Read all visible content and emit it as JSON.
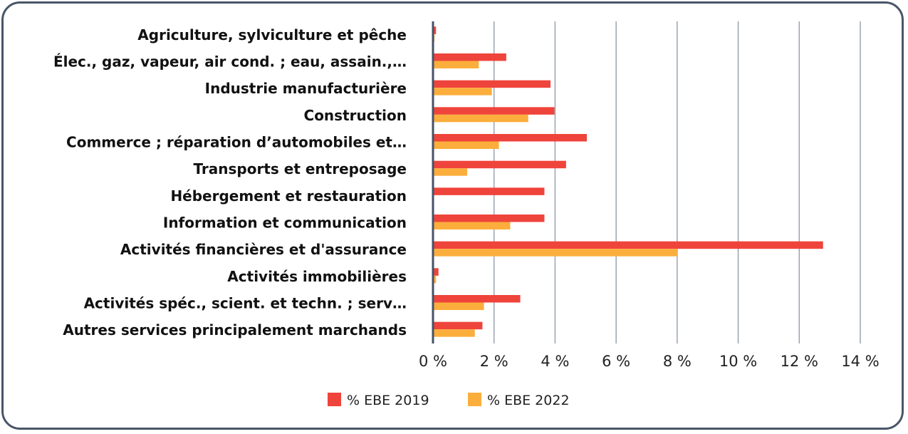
{
  "chart_data": {
    "type": "bar",
    "orientation": "horizontal",
    "title": "",
    "xlabel": "",
    "ylabel": "",
    "xlim": [
      0,
      14
    ],
    "xticks": [
      0,
      2,
      4,
      6,
      8,
      10,
      12,
      14
    ],
    "xtick_labels": [
      "0 %",
      "2 %",
      "4 %",
      "6 %",
      "8 %",
      "10 %",
      "12 %",
      "14 %"
    ],
    "grid": true,
    "legend_position": "bottom",
    "categories": [
      "Agriculture, sylviculture et pêche",
      "Élec., gaz, vapeur, air cond. ; eau, assain.,…",
      "Industrie manufacturière ",
      "Construction",
      "Commerce ; réparation d’automobiles et…",
      "Transports et entreposage",
      "Hébergement et restauration",
      "Information et communication",
      "Activités financières et d'assurance",
      "Activités immobilières",
      "Activités spéc., scient. et techn. ; serv…",
      "Autres services principalement marchands"
    ],
    "series": [
      {
        "name": "% EBE 2019",
        "color": "#ef443b",
        "values": [
          0.1,
          2.4,
          3.85,
          3.98,
          5.04,
          4.36,
          3.65,
          3.65,
          12.78,
          0.18,
          2.86,
          1.62
        ]
      },
      {
        "name": "% EBE 2022",
        "color": "#fbae3c",
        "values": [
          0.05,
          1.5,
          1.93,
          3.12,
          2.16,
          1.12,
          0,
          2.53,
          8.0,
          0.1,
          1.67,
          1.37
        ]
      }
    ]
  }
}
